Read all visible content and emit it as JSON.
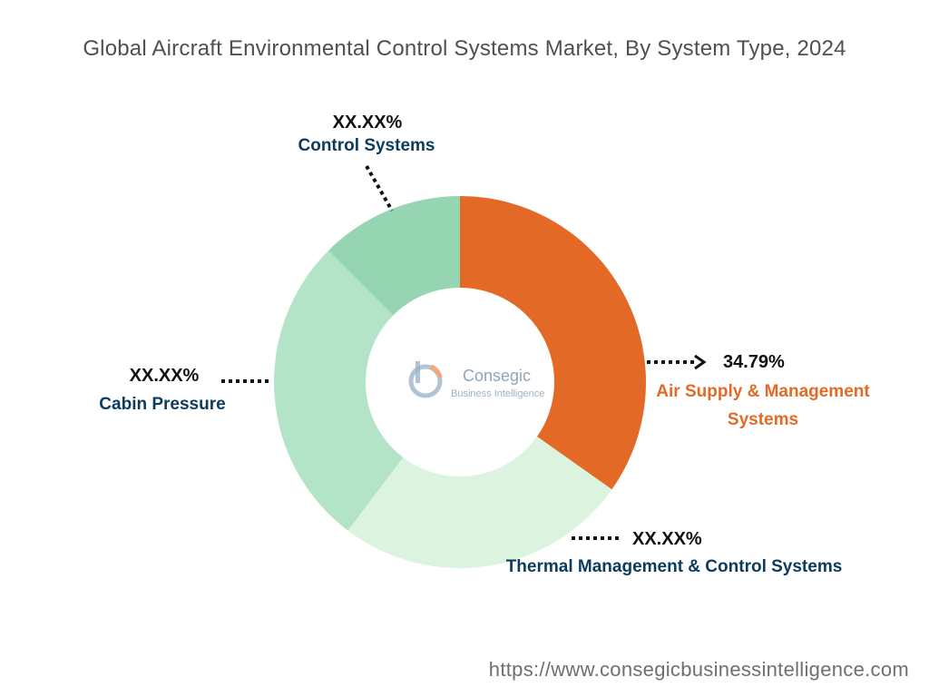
{
  "title": "Global Aircraft Environmental Control Systems Market, By System Type, 2024",
  "source_url": "https://www.consegicbusinessintelligence.com",
  "logo": {
    "name": "Consegic",
    "tagline": "Business Intelligence"
  },
  "colors": {
    "title": "#505050",
    "label_navy": "#0c3b5e",
    "label_orange": "#e36a26",
    "leader": "#111111"
  },
  "chart_data": {
    "type": "pie",
    "variant": "donut",
    "title": "Global Aircraft Environmental Control Systems Market, By System Type, 2024",
    "slices": [
      {
        "name": "Air Supply & Management Systems",
        "label_lines": [
          "Air Supply & Management",
          "Systems"
        ],
        "value_label": "34.79%",
        "value": 34.79,
        "color": "#e36a26"
      },
      {
        "name": "Thermal Management & Control Systems",
        "label_lines": [
          "Thermal Management & Control Systems"
        ],
        "value_label": "XX.XX%",
        "value": 25.5,
        "color": "#dcf3e0"
      },
      {
        "name": "Cabin Pressure",
        "label_lines": [
          "Cabin Pressure"
        ],
        "value_label": "XX.XX%",
        "value": 27.2,
        "color": "#b4e4c8"
      },
      {
        "name": "Control Systems",
        "label_lines": [
          "Control Systems"
        ],
        "value_label": "XX.XX%",
        "value": 12.51,
        "color": "#95d5b2"
      }
    ]
  }
}
